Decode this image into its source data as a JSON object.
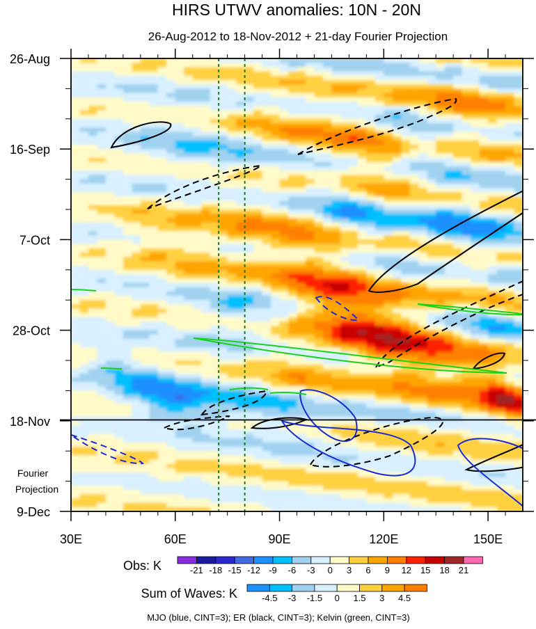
{
  "chart_data": {
    "type": "heatmap",
    "title": "HIRS UTWV anomalies: 10N - 20N",
    "subtitle": "26-Aug-2012 to 18-Nov-2012 + 21-day Fourier Projection",
    "x_ticks": [
      {
        "value": 30,
        "label": "30E"
      },
      {
        "value": 60,
        "label": "60E"
      },
      {
        "value": 90,
        "label": "90E"
      },
      {
        "value": 120,
        "label": "120E"
      },
      {
        "value": 150,
        "label": "150E"
      }
    ],
    "xlim": [
      30,
      160
    ],
    "y_ticks": [
      {
        "day": 0,
        "label": "26-Aug"
      },
      {
        "day": 21,
        "label": "16-Sep"
      },
      {
        "day": 42,
        "label": "7-Oct"
      },
      {
        "day": 63,
        "label": "28-Oct"
      },
      {
        "day": 84,
        "label": "18-Nov"
      },
      {
        "day": 105,
        "label": "9-Dec"
      }
    ],
    "ylim_days": [
      0,
      105
    ],
    "projection_start_day": 84,
    "projection_label_line1": "Fourier",
    "projection_label_line2": "Projection",
    "reference_longitudes": [
      72.5,
      80
    ],
    "obs_colorbar": {
      "title": "Obs: K",
      "levels": [
        "-21",
        "-18",
        "-15",
        "-12",
        "-9",
        "-6",
        "-3",
        "0",
        "3",
        "6",
        "9",
        "12",
        "15",
        "18",
        "21"
      ],
      "colors": [
        "#8a2be2",
        "#1a1aa0",
        "#2a2ad0",
        "#4169e1",
        "#1e90ff",
        "#00bfff",
        "#a0d2f0",
        "#d8f0ff",
        "#fffac8",
        "#ffd040",
        "#ffa500",
        "#ff8000",
        "#ff2000",
        "#c80000",
        "#a02828",
        "#ff69b4"
      ]
    },
    "waves_colorbar": {
      "title": "Sum of Waves: K",
      "levels": [
        "-4.5",
        "-3",
        "-1.5",
        "0",
        "1.5",
        "3",
        "4.5"
      ],
      "colors": [
        "#1e90ff",
        "#00bfff",
        "#a0d2f0",
        "#d8f0ff",
        "#fffac8",
        "#ffd040",
        "#ffa500",
        "#ff8000"
      ]
    },
    "footer": "MJO (blue, CINT=3); ER (black, CINT=3); Kelvin (green, CINT=3)"
  }
}
